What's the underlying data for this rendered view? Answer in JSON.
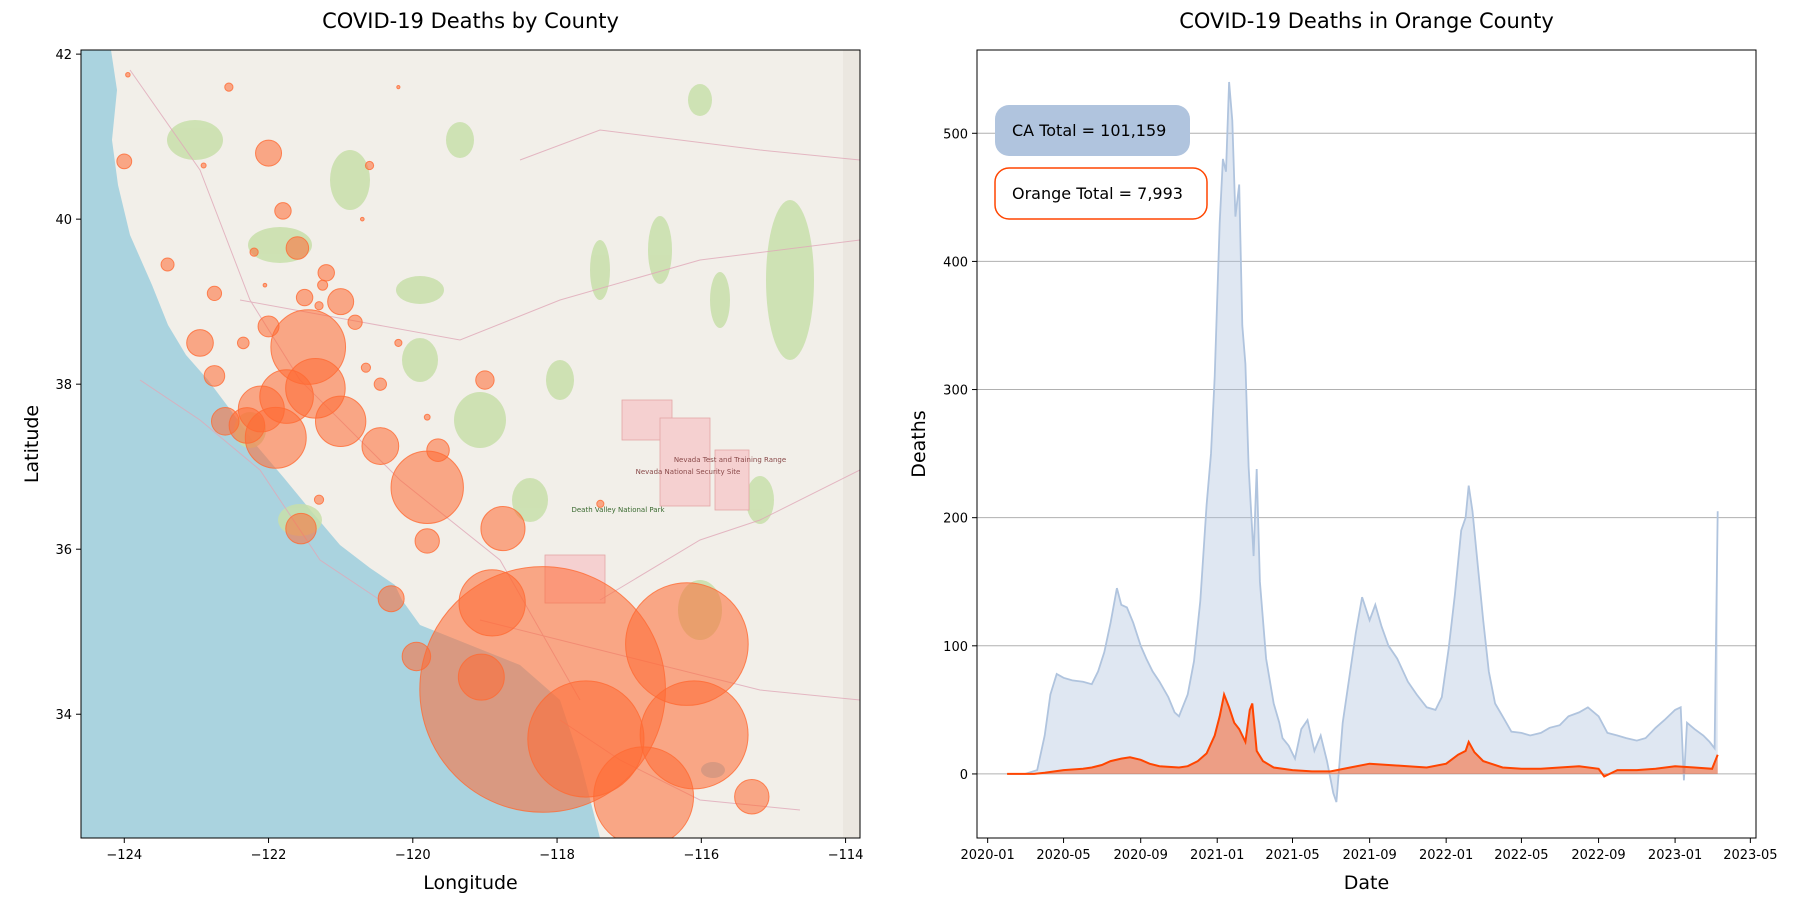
{
  "chart_data": [
    {
      "type": "bubble-map",
      "title": "COVID-19 Deaths by County",
      "xlabel": "Longitude",
      "ylabel": "Latitude",
      "xlim": [
        -124.6,
        -113.8
      ],
      "ylim": [
        32.5,
        42.05
      ],
      "xticks": [
        -124,
        -122,
        -120,
        -118,
        -116,
        -114
      ],
      "yticks": [
        34,
        36,
        38,
        40,
        42
      ],
      "xtick_labels": [
        "−124",
        "−122",
        "−120",
        "−118",
        "−116",
        "−114"
      ],
      "ytick_labels": [
        "34",
        "36",
        "38",
        "40",
        "42"
      ],
      "bubble_color": "#ff6a33",
      "points": [
        {
          "lon": -118.2,
          "lat": 34.3,
          "deaths": 35700
        },
        {
          "lon": -116.2,
          "lat": 34.85,
          "deaths": 8900
        },
        {
          "lon": -117.6,
          "lat": 33.7,
          "deaths": 7993
        },
        {
          "lon": -116.1,
          "lat": 33.75,
          "deaths": 6900
        },
        {
          "lon": -116.8,
          "lat": 33.0,
          "deaths": 5900
        },
        {
          "lon": -118.9,
          "lat": 35.35,
          "deaths": 2600
        },
        {
          "lon": -119.8,
          "lat": 36.75,
          "deaths": 3100
        },
        {
          "lon": -121.45,
          "lat": 38.45,
          "deaths": 3300
        },
        {
          "lon": -121.35,
          "lat": 37.95,
          "deaths": 2100
        },
        {
          "lon": -121.75,
          "lat": 37.85,
          "deaths": 1700
        },
        {
          "lon": -121.9,
          "lat": 37.35,
          "deaths": 2200
        },
        {
          "lon": -121.0,
          "lat": 37.55,
          "deaths": 1500
        },
        {
          "lon": -119.05,
          "lat": 34.45,
          "deaths": 1250
        },
        {
          "lon": -120.45,
          "lat": 37.25,
          "deaths": 800
        },
        {
          "lon": -122.1,
          "lat": 37.7,
          "deaths": 1250
        },
        {
          "lon": -118.75,
          "lat": 36.25,
          "deaths": 1150
        },
        {
          "lon": -122.3,
          "lat": 37.5,
          "deaths": 750
        },
        {
          "lon": -122.6,
          "lat": 37.55,
          "deaths": 450
        },
        {
          "lon": -121.55,
          "lat": 36.25,
          "deaths": 550
        },
        {
          "lon": -122.95,
          "lat": 38.5,
          "deaths": 420
        },
        {
          "lon": -120.3,
          "lat": 35.4,
          "deaths": 400
        },
        {
          "lon": -119.95,
          "lat": 34.7,
          "deaths": 480
        },
        {
          "lon": -119.65,
          "lat": 37.2,
          "deaths": 300
        },
        {
          "lon": -119.0,
          "lat": 38.05,
          "deaths": 200
        },
        {
          "lon": -119.8,
          "lat": 36.1,
          "deaths": 350
        },
        {
          "lon": -121.0,
          "lat": 39.0,
          "deaths": 400
        },
        {
          "lon": -121.2,
          "lat": 39.35,
          "deaths": 160
        },
        {
          "lon": -122.0,
          "lat": 40.8,
          "deaths": 400
        },
        {
          "lon": -121.6,
          "lat": 39.65,
          "deaths": 300
        },
        {
          "lon": -122.0,
          "lat": 38.7,
          "deaths": 260
        },
        {
          "lon": -122.75,
          "lat": 38.1,
          "deaths": 250
        },
        {
          "lon": -121.5,
          "lat": 39.05,
          "deaths": 160
        },
        {
          "lon": -121.8,
          "lat": 40.1,
          "deaths": 160
        },
        {
          "lon": -124.0,
          "lat": 40.7,
          "deaths": 130
        },
        {
          "lon": -122.75,
          "lat": 39.1,
          "deaths": 120
        },
        {
          "lon": -120.8,
          "lat": 38.75,
          "deaths": 120
        },
        {
          "lon": -120.45,
          "lat": 38.0,
          "deaths": 90
        },
        {
          "lon": -123.4,
          "lat": 39.45,
          "deaths": 100
        },
        {
          "lon": -115.3,
          "lat": 33.0,
          "deaths": 700
        },
        {
          "lon": -121.25,
          "lat": 39.2,
          "deaths": 60
        },
        {
          "lon": -120.65,
          "lat": 38.2,
          "deaths": 50
        },
        {
          "lon": -122.35,
          "lat": 38.5,
          "deaths": 80
        },
        {
          "lon": -121.3,
          "lat": 36.6,
          "deaths": 50
        },
        {
          "lon": -120.6,
          "lat": 40.65,
          "deaths": 40
        },
        {
          "lon": -121.3,
          "lat": 38.95,
          "deaths": 40
        },
        {
          "lon": -122.2,
          "lat": 39.6,
          "deaths": 40
        },
        {
          "lon": -122.55,
          "lat": 41.6,
          "deaths": 40
        },
        {
          "lon": -120.2,
          "lat": 38.5,
          "deaths": 30
        },
        {
          "lon": -117.4,
          "lat": 36.55,
          "deaths": 30
        },
        {
          "lon": -119.8,
          "lat": 37.6,
          "deaths": 20
        },
        {
          "lon": -122.9,
          "lat": 40.65,
          "deaths": 15
        },
        {
          "lon": -120.7,
          "lat": 40.0,
          "deaths": 8
        },
        {
          "lon": -122.05,
          "lat": 39.2,
          "deaths": 8
        },
        {
          "lon": -123.95,
          "lat": 41.75,
          "deaths": 12
        },
        {
          "lon": -120.2,
          "lat": 41.6,
          "deaths": 6
        }
      ],
      "map_labels": [
        "Death Valley National Park",
        "Nevada National Security Site",
        "Nevada Test and Training Range"
      ]
    },
    {
      "type": "area-line",
      "title": "COVID-19 Deaths in Orange County",
      "xlabel": "Date",
      "ylabel": "Deaths",
      "xlim": [
        "2019-12-15",
        "2023-05-10"
      ],
      "ylim": [
        -50,
        565
      ],
      "yticks": [
        0,
        100,
        200,
        300,
        400,
        500
      ],
      "xticks": [
        "2020-01",
        "2020-05",
        "2020-09",
        "2021-01",
        "2021-05",
        "2021-09",
        "2022-01",
        "2022-05",
        "2022-09",
        "2023-01",
        "2023-05"
      ],
      "grid": "horizontal",
      "series": [
        {
          "style": "area",
          "color": "#b0c4de",
          "points": [
            [
              "2020-02-01",
              0
            ],
            [
              "2020-03-01",
              0
            ],
            [
              "2020-03-20",
              3
            ],
            [
              "2020-04-01",
              30
            ],
            [
              "2020-04-10",
              62
            ],
            [
              "2020-04-20",
              78
            ],
            [
              "2020-05-01",
              75
            ],
            [
              "2020-05-15",
              73
            ],
            [
              "2020-06-01",
              72
            ],
            [
              "2020-06-15",
              70
            ],
            [
              "2020-06-25",
              80
            ],
            [
              "2020-07-05",
              95
            ],
            [
              "2020-07-15",
              118
            ],
            [
              "2020-07-25",
              145
            ],
            [
              "2020-08-01",
              132
            ],
            [
              "2020-08-10",
              130
            ],
            [
              "2020-08-20",
              118
            ],
            [
              "2020-09-01",
              100
            ],
            [
              "2020-09-10",
              90
            ],
            [
              "2020-09-20",
              80
            ],
            [
              "2020-10-01",
              72
            ],
            [
              "2020-10-15",
              60
            ],
            [
              "2020-10-25",
              48
            ],
            [
              "2020-11-01",
              45
            ],
            [
              "2020-11-15",
              62
            ],
            [
              "2020-11-25",
              88
            ],
            [
              "2020-12-05",
              135
            ],
            [
              "2020-12-15",
              210
            ],
            [
              "2020-12-22",
              250
            ],
            [
              "2020-12-28",
              310
            ],
            [
              "2021-01-05",
              430
            ],
            [
              "2021-01-10",
              480
            ],
            [
              "2021-01-15",
              470
            ],
            [
              "2021-01-20",
              540
            ],
            [
              "2021-01-25",
              510
            ],
            [
              "2021-01-30",
              435
            ],
            [
              "2021-02-05",
              460
            ],
            [
              "2021-02-10",
              350
            ],
            [
              "2021-02-15",
              320
            ],
            [
              "2021-02-20",
              240
            ],
            [
              "2021-02-28",
              170
            ],
            [
              "2021-03-05",
              238
            ],
            [
              "2021-03-10",
              150
            ],
            [
              "2021-03-20",
              90
            ],
            [
              "2021-04-01",
              55
            ],
            [
              "2021-04-10",
              40
            ],
            [
              "2021-04-15",
              28
            ],
            [
              "2021-04-25",
              22
            ],
            [
              "2021-05-05",
              12
            ],
            [
              "2021-05-15",
              35
            ],
            [
              "2021-05-25",
              42
            ],
            [
              "2021-06-05",
              18
            ],
            [
              "2021-06-15",
              30
            ],
            [
              "2021-06-25",
              10
            ],
            [
              "2021-07-05",
              -15
            ],
            [
              "2021-07-10",
              -22
            ],
            [
              "2021-07-20",
              40
            ],
            [
              "2021-08-01",
              80
            ],
            [
              "2021-08-10",
              110
            ],
            [
              "2021-08-20",
              138
            ],
            [
              "2021-09-01",
              120
            ],
            [
              "2021-09-10",
              132
            ],
            [
              "2021-09-20",
              115
            ],
            [
              "2021-10-01",
              100
            ],
            [
              "2021-10-15",
              90
            ],
            [
              "2021-11-01",
              72
            ],
            [
              "2021-11-15",
              62
            ],
            [
              "2021-12-01",
              52
            ],
            [
              "2021-12-15",
              50
            ],
            [
              "2021-12-25",
              60
            ],
            [
              "2022-01-05",
              98
            ],
            [
              "2022-01-15",
              140
            ],
            [
              "2022-01-25",
              190
            ],
            [
              "2022-02-01",
              200
            ],
            [
              "2022-02-06",
              225
            ],
            [
              "2022-02-12",
              205
            ],
            [
              "2022-02-20",
              165
            ],
            [
              "2022-03-01",
              120
            ],
            [
              "2022-03-10",
              80
            ],
            [
              "2022-03-20",
              55
            ],
            [
              "2022-04-01",
              45
            ],
            [
              "2022-04-15",
              33
            ],
            [
              "2022-05-01",
              32
            ],
            [
              "2022-05-15",
              30
            ],
            [
              "2022-06-01",
              32
            ],
            [
              "2022-06-15",
              36
            ],
            [
              "2022-07-01",
              38
            ],
            [
              "2022-07-15",
              45
            ],
            [
              "2022-08-01",
              48
            ],
            [
              "2022-08-15",
              52
            ],
            [
              "2022-09-01",
              45
            ],
            [
              "2022-09-15",
              32
            ],
            [
              "2022-10-01",
              30
            ],
            [
              "2022-10-15",
              28
            ],
            [
              "2022-11-01",
              26
            ],
            [
              "2022-11-15",
              28
            ],
            [
              "2022-12-01",
              36
            ],
            [
              "2022-12-15",
              42
            ],
            [
              "2023-01-01",
              50
            ],
            [
              "2023-01-10",
              52
            ],
            [
              "2023-01-15",
              -5
            ],
            [
              "2023-01-20",
              40
            ],
            [
              "2023-02-01",
              35
            ],
            [
              "2023-02-15",
              30
            ],
            [
              "2023-02-25",
              25
            ],
            [
              "2023-03-05",
              20
            ],
            [
              "2023-03-10",
              205
            ]
          ]
        },
        {
          "style": "area",
          "color": "#ff4500",
          "points": [
            [
              "2020-02-01",
              0
            ],
            [
              "2020-03-15",
              0
            ],
            [
              "2020-04-01",
              1
            ],
            [
              "2020-05-01",
              3
            ],
            [
              "2020-06-01",
              4
            ],
            [
              "2020-06-15",
              5
            ],
            [
              "2020-07-01",
              7
            ],
            [
              "2020-07-15",
              10
            ],
            [
              "2020-08-01",
              12
            ],
            [
              "2020-08-15",
              13
            ],
            [
              "2020-09-01",
              11
            ],
            [
              "2020-09-15",
              8
            ],
            [
              "2020-10-01",
              6
            ],
            [
              "2020-11-01",
              5
            ],
            [
              "2020-11-15",
              6
            ],
            [
              "2020-12-01",
              10
            ],
            [
              "2020-12-15",
              16
            ],
            [
              "2020-12-28",
              30
            ],
            [
              "2021-01-05",
              45
            ],
            [
              "2021-01-12",
              62
            ],
            [
              "2021-01-20",
              52
            ],
            [
              "2021-01-28",
              40
            ],
            [
              "2021-02-05",
              35
            ],
            [
              "2021-02-15",
              25
            ],
            [
              "2021-02-22",
              50
            ],
            [
              "2021-02-26",
              55
            ],
            [
              "2021-03-05",
              18
            ],
            [
              "2021-03-15",
              10
            ],
            [
              "2021-04-01",
              5
            ],
            [
              "2021-05-01",
              3
            ],
            [
              "2021-06-01",
              2
            ],
            [
              "2021-07-01",
              2
            ],
            [
              "2021-08-01",
              5
            ],
            [
              "2021-09-01",
              8
            ],
            [
              "2021-10-01",
              7
            ],
            [
              "2021-11-01",
              6
            ],
            [
              "2021-12-01",
              5
            ],
            [
              "2022-01-01",
              8
            ],
            [
              "2022-01-20",
              15
            ],
            [
              "2022-02-01",
              18
            ],
            [
              "2022-02-06",
              25
            ],
            [
              "2022-02-15",
              17
            ],
            [
              "2022-03-01",
              10
            ],
            [
              "2022-04-01",
              5
            ],
            [
              "2022-05-01",
              4
            ],
            [
              "2022-06-01",
              4
            ],
            [
              "2022-07-01",
              5
            ],
            [
              "2022-08-01",
              6
            ],
            [
              "2022-09-01",
              4
            ],
            [
              "2022-09-10",
              -2
            ],
            [
              "2022-10-01",
              3
            ],
            [
              "2022-11-01",
              3
            ],
            [
              "2022-12-01",
              4
            ],
            [
              "2023-01-01",
              6
            ],
            [
              "2023-02-01",
              5
            ],
            [
              "2023-03-01",
              4
            ],
            [
              "2023-03-10",
              15
            ]
          ]
        }
      ],
      "annotations": [
        {
          "text": "CA Total = 101,159",
          "style": "filled",
          "color": "#b0c4de"
        },
        {
          "text": "Orange Total = 7,993",
          "style": "outlined",
          "color": "#ff4500"
        }
      ]
    }
  ]
}
